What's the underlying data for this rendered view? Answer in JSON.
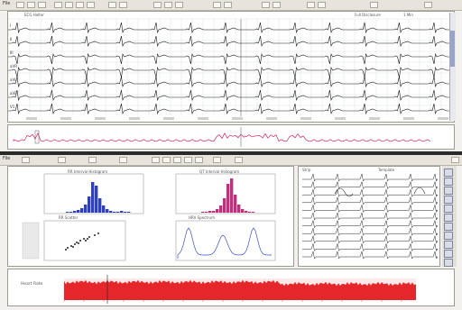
{
  "top_window": {
    "toolbar_label": "File",
    "header_left": "ECG Holter",
    "header_right_1": "Full Disclosure",
    "header_right_2": "1 Min",
    "channel_labels": [
      "I",
      "II",
      "III",
      "aVR",
      "aVL",
      "aVF",
      "V1"
    ]
  },
  "bottom_window": {
    "toolbar_label": "File",
    "histogram_1_title": "RR Interval Histogram",
    "histogram_2_title": "QT Interval Histogram",
    "scatter_title": "RR Scatter",
    "spectrum_title": "HRV Spectrum",
    "heart_rate_label": "Heart Rate",
    "strips_header_left": "Strip",
    "strips_header_right": "Template"
  },
  "colors": {
    "ecg_trace": "#1a1a1a",
    "ecg_grid": "#d9e6dc",
    "histogram_blue": "#2e3fbf",
    "histogram_magenta": "#c0307c",
    "spectrum": "#3a4fd0",
    "trend_red": "#e5272b",
    "rhythm_pink": "#d6246b"
  },
  "icons": [
    "grid-icon",
    "zoom-icon",
    "print-icon",
    "settings-icon"
  ]
}
